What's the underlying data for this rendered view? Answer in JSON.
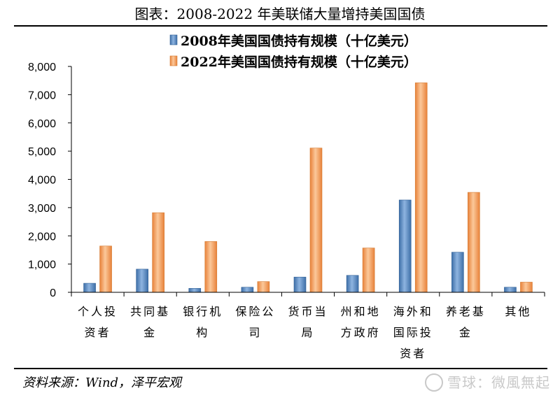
{
  "title": "图表：2008-2022 年美联储大量增持美国国债",
  "source": "资料来源：Wind，泽平宏观",
  "watermark": "雪球：微風無起",
  "chart_data": {
    "type": "bar",
    "categories": [
      [
        "个人投",
        "资者"
      ],
      [
        "共同基",
        "金"
      ],
      [
        "银行机",
        "构"
      ],
      [
        "保险公",
        "司"
      ],
      [
        "货币当",
        "局"
      ],
      [
        "州和地",
        "方政府"
      ],
      [
        "海外和",
        "国际投",
        "资者"
      ],
      [
        "养老基",
        "金"
      ],
      [
        "其他"
      ]
    ],
    "series": [
      {
        "name": "2008年美国国债持有规模（十亿美元）",
        "color": "#4a7ebb",
        "values": [
          320,
          820,
          140,
          180,
          540,
          600,
          3270,
          1420,
          180
        ]
      },
      {
        "name": "2022年美国国债持有规模（十亿美元）",
        "color": "#f0944a",
        "values": [
          1640,
          2820,
          1800,
          380,
          5110,
          1570,
          7420,
          3540,
          360
        ]
      }
    ],
    "ylim": [
      0,
      8000
    ],
    "yticks": [
      "0",
      "1,000",
      "2,000",
      "3,000",
      "4,000",
      "5,000",
      "6,000",
      "7,000",
      "8,000"
    ],
    "grid": false,
    "legend_position": "top-center"
  }
}
